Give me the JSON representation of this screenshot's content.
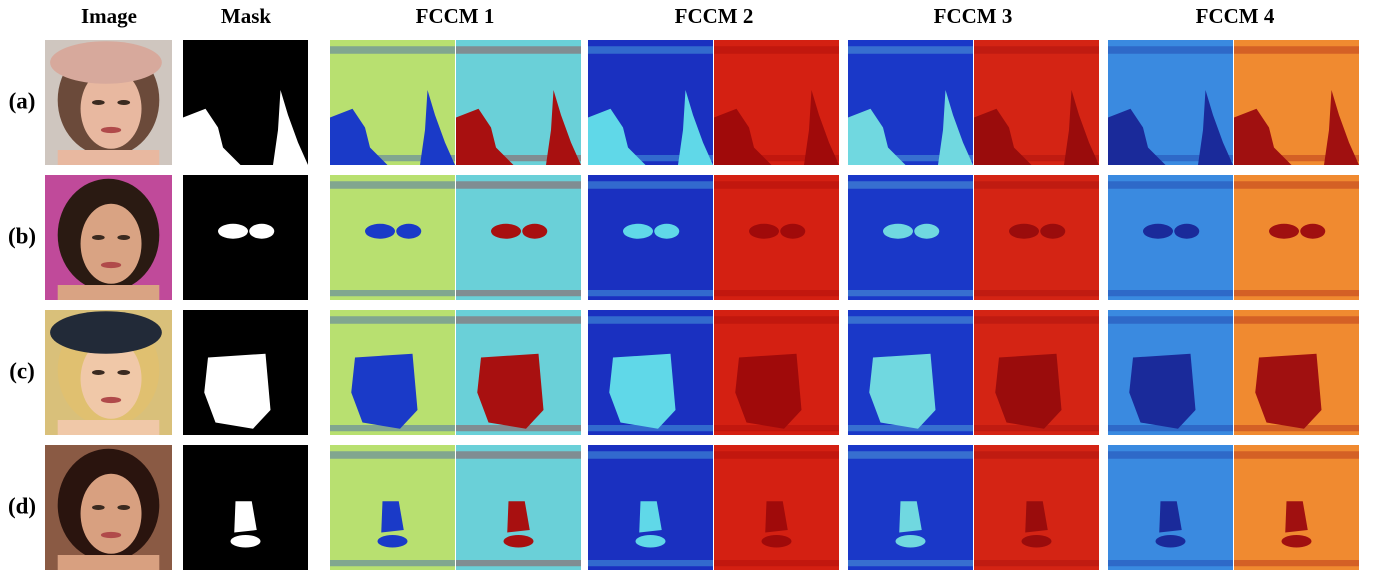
{
  "header": {
    "columns": [
      "Image",
      "Mask",
      "FCCM 1",
      "FCCM 2",
      "FCCM 3",
      "FCCM 4"
    ]
  },
  "rows": [
    "(a)",
    "(b)",
    "(c)",
    "(d)"
  ]
}
